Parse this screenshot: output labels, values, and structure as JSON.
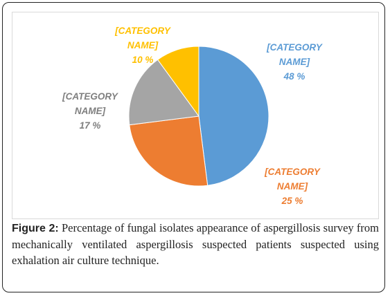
{
  "chart_data": {
    "type": "pie",
    "slices": [
      {
        "label": "[CATEGORY NAME]",
        "value": 48,
        "value_text": "48 %",
        "color": "#5b9bd5",
        "label_color": "#5b9bd5"
      },
      {
        "label": "[CATEGORY NAME]",
        "value": 25,
        "value_text": "25 %",
        "color": "#ed7d31",
        "label_color": "#ed7d31"
      },
      {
        "label": "[CATEGORY NAME]",
        "value": 17,
        "value_text": "17 %",
        "color": "#a5a5a5",
        "label_color": "#7f7f7f"
      },
      {
        "label": "[CATEGORY NAME]",
        "value": 10,
        "value_text": "10 %",
        "color": "#ffc000",
        "label_color": "#ffc000"
      }
    ]
  },
  "caption": {
    "label": "Figure 2:",
    "text": "Percentage of fungal isolates appearance of aspergillosis survey from mechanically ventilated aspergillosis suspected patients suspected using exhalation air culture technique."
  }
}
